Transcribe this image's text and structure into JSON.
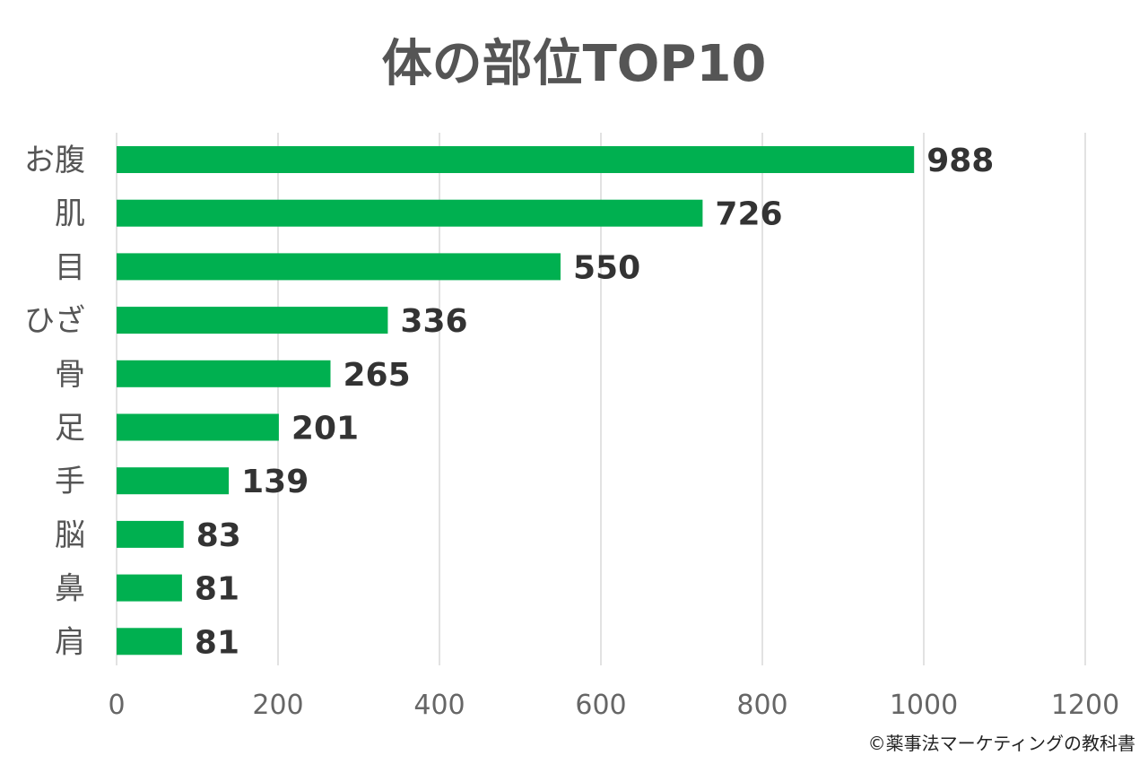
{
  "chart_data": {
    "type": "bar",
    "orientation": "horizontal",
    "title": "体の部位TOP10",
    "categories": [
      "お腹",
      "肌",
      "目",
      "ひざ",
      "骨",
      "足",
      "手",
      "脳",
      "鼻",
      "肩"
    ],
    "values": [
      988,
      726,
      550,
      336,
      265,
      201,
      139,
      83,
      81,
      81
    ],
    "xlabel": "",
    "ylabel": "",
    "xlim": [
      0,
      1200
    ],
    "xticks": [
      0,
      200,
      400,
      600,
      800,
      1000,
      1200
    ],
    "grid": true,
    "legend": "none",
    "bar_color": "#00b050"
  },
  "credit": "©薬事法マーケティングの教科書"
}
